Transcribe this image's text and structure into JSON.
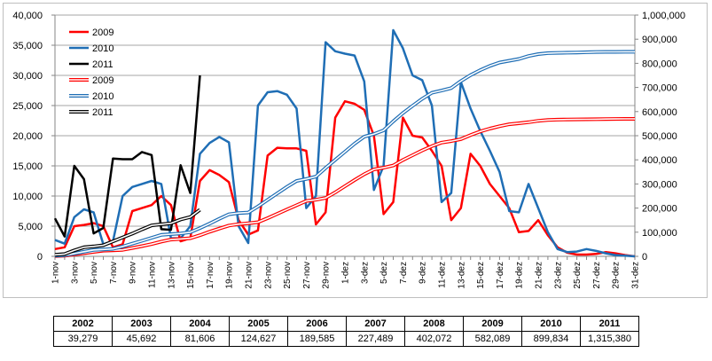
{
  "chart_data": {
    "type": "line",
    "x_categories": [
      "1-nov",
      "2-nov",
      "3-nov",
      "4-nov",
      "5-nov",
      "6-nov",
      "7-nov",
      "8-nov",
      "9-nov",
      "10-nov",
      "11-nov",
      "12-nov",
      "13-nov",
      "14-nov",
      "15-nov",
      "16-nov",
      "17-nov",
      "18-nov",
      "19-nov",
      "20-nov",
      "21-nov",
      "22-nov",
      "23-nov",
      "24-nov",
      "25-nov",
      "26-nov",
      "27-nov",
      "28-nov",
      "29-nov",
      "30-nov",
      "1-dez",
      "2-dez",
      "3-dez",
      "4-dez",
      "5-dez",
      "6-dez",
      "7-dez",
      "8-dez",
      "9-dez",
      "10-dez",
      "11-dez",
      "12-dez",
      "13-dez",
      "14-dez",
      "15-dez",
      "16-dez",
      "17-dez",
      "18-dez",
      "19-dez",
      "20-dez",
      "21-dez",
      "22-dez",
      "23-dez",
      "24-dez",
      "25-dez",
      "26-dez",
      "27-dez",
      "28-dez",
      "29-dez",
      "30-dez",
      "31-dez"
    ],
    "x_tick_labels": [
      "1-nov",
      "3-nov",
      "5-nov",
      "7-nov",
      "9-nov",
      "11-nov",
      "13-nov",
      "15-nov",
      "17-nov",
      "19-nov",
      "21-nov",
      "23-nov",
      "25-nov",
      "27-nov",
      "29-nov",
      "1-dez",
      "3-dez",
      "5-dez",
      "7-dez",
      "9-dez",
      "11-dez",
      "13-dez",
      "15-dez",
      "17-dez",
      "19-dez",
      "21-dez",
      "23-dez",
      "25-dez",
      "27-dez",
      "29-dez",
      "31-dez"
    ],
    "y_left": {
      "min": 0,
      "max": 40000,
      "ticks": [
        "0",
        "5,000",
        "10,000",
        "15,000",
        "20,000",
        "25,000",
        "30,000",
        "35,000",
        "40,000"
      ]
    },
    "y_right": {
      "min": 0,
      "max": 1000000,
      "ticks": [
        "0",
        "100,000",
        "200,000",
        "300,000",
        "400,000",
        "500,000",
        "600,000",
        "700,000",
        "800,000",
        "900,000",
        "1,000,000"
      ]
    },
    "grid": true,
    "legend_position": "top-left",
    "series": [
      {
        "name": "2009",
        "axis": "left",
        "style": "thick",
        "color": "#ff0000",
        "values": [
          1200,
          1500,
          5000,
          5200,
          5500,
          5000,
          1500,
          2000,
          7500,
          8000,
          8500,
          10000,
          8500,
          2500,
          3000,
          12500,
          14300,
          13500,
          12300,
          6000,
          3600,
          4300,
          16700,
          18000,
          17900,
          17900,
          17500,
          5300,
          7300,
          23000,
          25700,
          25300,
          24300,
          20000,
          7000,
          9000,
          23000,
          20000,
          19700,
          17500,
          15000,
          6000,
          8000,
          17000,
          15000,
          12000,
          10000,
          8000,
          4000,
          4200,
          6000,
          3500,
          1500,
          600,
          300,
          300,
          400,
          700,
          500,
          200,
          0
        ]
      },
      {
        "name": "2010",
        "axis": "left",
        "style": "thick",
        "color": "#1f6eb5",
        "values": [
          2700,
          2100,
          6500,
          7800,
          7300,
          2000,
          2500,
          10000,
          11500,
          12000,
          12500,
          12000,
          3000,
          3000,
          5000,
          17000,
          18800,
          19800,
          18900,
          5000,
          2200,
          25000,
          27200,
          27400,
          26800,
          24500,
          8000,
          10000,
          35500,
          34000,
          33600,
          33300,
          29000,
          11000,
          15000,
          37500,
          34500,
          30000,
          29200,
          25000,
          9000,
          10500,
          28900,
          24500,
          20800,
          17500,
          14000,
          7500,
          7300,
          12000,
          8000,
          4000,
          1200,
          700,
          800,
          1200,
          900,
          500,
          200,
          100,
          0
        ]
      },
      {
        "name": "2011",
        "axis": "left",
        "style": "thick",
        "color": "#000000",
        "values": [
          6300,
          3300,
          15000,
          12800,
          3800,
          4700,
          16200,
          16100,
          16100,
          17300,
          16800,
          4500,
          4400,
          15100,
          10500,
          30000
        ]
      },
      {
        "name": "2009",
        "axis": "right",
        "style": "double",
        "color": "#ff0000",
        "values": [
          1200,
          2700,
          7700,
          12900,
          18400,
          23400,
          24900,
          26900,
          34400,
          42400,
          50900,
          60900,
          69400,
          71900,
          74900,
          87400,
          101700,
          115200,
          127500,
          133500,
          137100,
          141400,
          158100,
          176100,
          194000,
          211900,
          229400,
          234700,
          242000,
          265000,
          290700,
          316000,
          340300,
          360300,
          367300,
          376300,
          399300,
          419300,
          439000,
          456500,
          471500,
          477500,
          485500,
          502500,
          517500,
          529500,
          539500,
          547500,
          551500,
          555700,
          561700,
          565200,
          566700,
          567300,
          567600,
          567900,
          568300,
          569000,
          569500,
          569700,
          569700
        ]
      },
      {
        "name": "2010",
        "axis": "right",
        "style": "double",
        "color": "#1f6eb5",
        "values": [
          2700,
          4800,
          11300,
          19100,
          26400,
          28400,
          30900,
          40900,
          52400,
          64400,
          76900,
          88900,
          91900,
          94900,
          99900,
          116900,
          135700,
          155500,
          174400,
          179400,
          181600,
          206600,
          233800,
          261200,
          288000,
          312500,
          320500,
          330500,
          366000,
          400000,
          433600,
          466900,
          495900,
          506900,
          521900,
          559400,
          593900,
          623900,
          653100,
          678100,
          687100,
          697600,
          726500,
          751000,
          771800,
          789300,
          803300,
          810800,
          818100,
          830100,
          838100,
          842100,
          843300,
          844000,
          844800,
          846000,
          846900,
          847400,
          847600,
          847700,
          847700
        ]
      },
      {
        "name": "2011",
        "axis": "right",
        "style": "double",
        "color": "#000000",
        "values": [
          6300,
          9600,
          24600,
          37400,
          41200,
          45900,
          62100,
          78200,
          94300,
          111600,
          128400,
          132900,
          137300,
          152400,
          162900,
          192900
        ]
      }
    ],
    "legend_entries": [
      "2009",
      "2010",
      "2011",
      "2009",
      "2010",
      "2011"
    ]
  },
  "totals_table": {
    "years": [
      "2002",
      "2003",
      "2004",
      "2005",
      "2006",
      "2007",
      "2008",
      "2009",
      "2010",
      "2011"
    ],
    "values": [
      "39,279",
      "45,692",
      "81,606",
      "124,627",
      "189,585",
      "227,489",
      "402,072",
      "582,089",
      "899,834",
      "1,315,380"
    ]
  }
}
